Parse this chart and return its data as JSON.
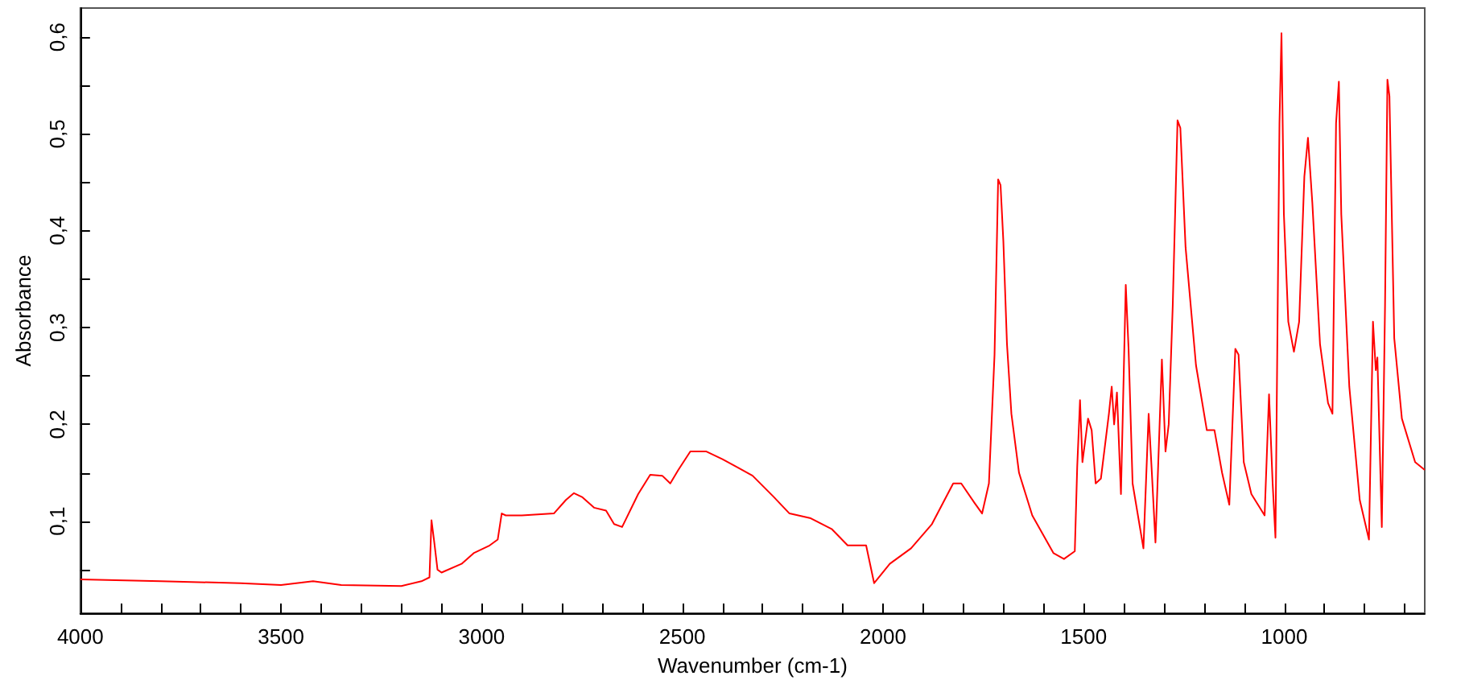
{
  "chart_data": {
    "type": "line",
    "xlabel": "Wavenumber (cm-1)",
    "ylabel": "Absorbance",
    "xlim": [
      4000,
      650
    ],
    "xticks": [
      4000,
      {
        "value": 3900,
        "label": null
      },
      {
        "value": 3800,
        "label": null
      },
      {
        "value": 3700,
        "label": null
      },
      {
        "value": 3600,
        "label": null
      },
      3500,
      {
        "value": 3400,
        "label": null
      },
      {
        "value": 3300,
        "label": null
      },
      {
        "value": 3200,
        "label": null
      },
      {
        "value": 3100,
        "label": null
      },
      3000,
      {
        "value": 2900,
        "label": null
      },
      {
        "value": 2800,
        "label": null
      },
      {
        "value": 2700,
        "label": null
      },
      {
        "value": 2600,
        "label": null
      },
      2500,
      {
        "value": 2400,
        "label": null
      },
      {
        "value": 2300,
        "label": null
      },
      {
        "value": 2200,
        "label": null
      },
      {
        "value": 2100,
        "label": null
      },
      2000,
      {
        "value": 1900,
        "label": null
      },
      {
        "value": 1800,
        "label": null
      },
      {
        "value": 1700,
        "label": null
      },
      {
        "value": 1600,
        "label": null
      },
      1500,
      {
        "value": 1400,
        "label": null
      },
      {
        "value": 1300,
        "label": null
      },
      {
        "value": 1200,
        "label": null
      },
      {
        "value": 1100,
        "label": null
      },
      1000,
      {
        "value": 900,
        "label": null
      },
      {
        "value": 800,
        "label": null
      },
      {
        "value": 700,
        "label": null
      }
    ],
    "ylim": [
      0.005,
      0.63
    ],
    "yticks": [
      {
        "value": 0.05,
        "label": null
      },
      {
        "value": 0.1,
        "label": "0,1"
      },
      {
        "value": 0.15,
        "label": null
      },
      {
        "value": 0.2,
        "label": "0,2"
      },
      {
        "value": 0.25,
        "label": null
      },
      {
        "value": 0.3,
        "label": "0,3"
      },
      {
        "value": 0.35,
        "label": null
      },
      {
        "value": 0.4,
        "label": "0,4"
      },
      {
        "value": 0.45,
        "label": null
      },
      {
        "value": 0.5,
        "label": "0,5"
      },
      {
        "value": 0.55,
        "label": null
      },
      {
        "value": 0.6,
        "label": "0,6"
      }
    ],
    "grid": false,
    "marker": "none",
    "line_style": "solid",
    "series": [
      {
        "color": "#ff0000",
        "x": [
          4000,
          3800,
          3600,
          3500,
          3420,
          3350,
          3200,
          3150,
          3130,
          3125,
          3118,
          3110,
          3100,
          3050,
          3020,
          2980,
          2960,
          2950,
          2940,
          2900,
          2820,
          2790,
          2770,
          2750,
          2720,
          2690,
          2670,
          2650,
          2610,
          2580,
          2550,
          2530,
          2510,
          2480,
          2440,
          2400,
          2364,
          2325,
          2272,
          2233,
          2180,
          2128,
          2088,
          2042,
          2022,
          1983,
          1930,
          1878,
          1825,
          1805,
          1772,
          1753,
          1736,
          1722,
          1713,
          1707,
          1700,
          1691,
          1680,
          1661,
          1628,
          1575,
          1549,
          1522,
          1516,
          1509,
          1503,
          1489,
          1480,
          1470,
          1457,
          1437,
          1430,
          1424,
          1417,
          1407,
          1395,
          1388,
          1378,
          1351,
          1338,
          1330,
          1321,
          1305,
          1296,
          1288,
          1278,
          1266,
          1259,
          1246,
          1220,
          1193,
          1174,
          1155,
          1137,
          1122,
          1114,
          1101,
          1082,
          1049,
          1038,
          1029,
          1022,
          1012,
          1007,
          1001,
          990,
          976,
          963,
          950,
          941,
          930,
          911,
          891,
          880,
          871,
          864,
          858,
          838,
          812,
          789,
          779,
          772,
          768,
          757,
          749,
          743,
          738,
          726,
          707,
          674,
          650
        ],
        "values": [
          0.04,
          0.038,
          0.036,
          0.034,
          0.038,
          0.034,
          0.033,
          0.038,
          0.042,
          0.101,
          0.078,
          0.05,
          0.047,
          0.056,
          0.067,
          0.075,
          0.081,
          0.108,
          0.106,
          0.106,
          0.108,
          0.122,
          0.129,
          0.125,
          0.114,
          0.111,
          0.097,
          0.094,
          0.128,
          0.148,
          0.147,
          0.139,
          0.153,
          0.172,
          0.172,
          0.164,
          0.156,
          0.147,
          0.125,
          0.108,
          0.103,
          0.092,
          0.075,
          0.075,
          0.036,
          0.056,
          0.072,
          0.097,
          0.139,
          0.139,
          0.119,
          0.108,
          0.139,
          0.272,
          0.453,
          0.447,
          0.389,
          0.283,
          0.211,
          0.15,
          0.106,
          0.067,
          0.061,
          0.069,
          0.156,
          0.225,
          0.161,
          0.206,
          0.194,
          0.139,
          0.144,
          0.211,
          0.239,
          0.2,
          0.233,
          0.128,
          0.344,
          0.278,
          0.139,
          0.072,
          0.211,
          0.15,
          0.078,
          0.267,
          0.172,
          0.2,
          0.322,
          0.514,
          0.506,
          0.383,
          0.261,
          0.194,
          0.194,
          0.15,
          0.117,
          0.278,
          0.272,
          0.161,
          0.128,
          0.106,
          0.231,
          0.139,
          0.083,
          0.511,
          0.604,
          0.417,
          0.306,
          0.275,
          0.306,
          0.456,
          0.496,
          0.428,
          0.283,
          0.222,
          0.211,
          0.511,
          0.554,
          0.417,
          0.239,
          0.122,
          0.081,
          0.306,
          0.256,
          0.269,
          0.094,
          0.322,
          0.556,
          0.539,
          0.289,
          0.206,
          0.161,
          0.153
        ]
      }
    ]
  }
}
